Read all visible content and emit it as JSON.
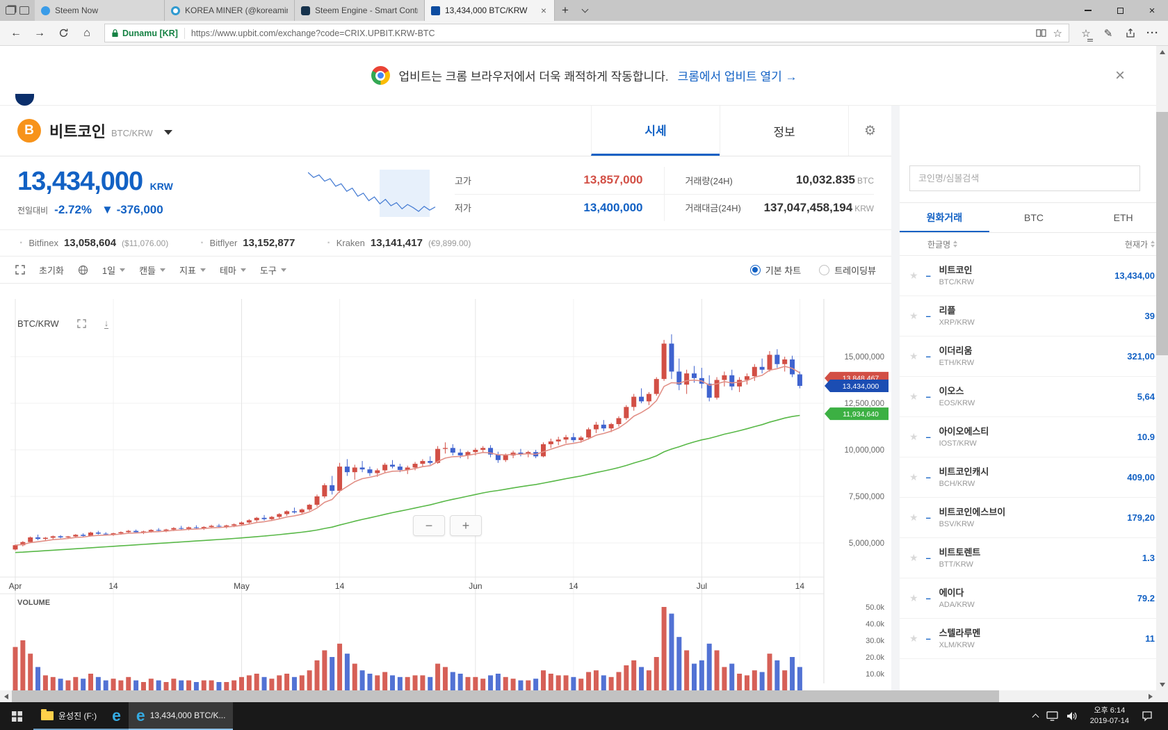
{
  "browser": {
    "tabs": [
      {
        "title": "Steem Now",
        "icon": "steem-now",
        "active": false
      },
      {
        "title": "KOREA MINER (@koreamin...",
        "icon": "korea-miner",
        "active": false
      },
      {
        "title": "Steem Engine - Smart Contr...",
        "icon": "steem-engine",
        "active": false
      },
      {
        "title": "13,434,000 BTC/KRW",
        "icon": "upbit",
        "active": true
      }
    ],
    "address": {
      "site_identity": "Dunamu [KR]",
      "url": "https://www.upbit.com/exchange?code=CRIX.UPBIT.KRW-BTC"
    }
  },
  "banner": {
    "message": "업비트는 크롬 브라우저에서 더욱 쾌적하게 작동합니다.",
    "link": "크롬에서 업비트 열기 →"
  },
  "coin_header": {
    "name": "비트코인",
    "pair": "BTC/KRW",
    "tab_price": "시세",
    "tab_info": "정보"
  },
  "price_panel": {
    "price": "13,434,000",
    "currency": "KRW",
    "change_label": "전일대비",
    "change_pct": "-2.72%",
    "change_amount": "▼ -376,000",
    "stats": [
      {
        "label": "고가",
        "value": "13,857,000",
        "unit": "",
        "tone": "up"
      },
      {
        "label": "거래량(24H)",
        "value": "10,032.835",
        "unit": "BTC",
        "tone": "plain"
      },
      {
        "label": "저가",
        "value": "13,400,000",
        "unit": "",
        "tone": "down"
      },
      {
        "label": "거래대금(24H)",
        "value": "137,047,458,194",
        "unit": "KRW",
        "tone": "plain"
      }
    ],
    "exchanges": [
      {
        "name": "Bitfinex",
        "value": "13,058,604",
        "sub": "($11,076.00)"
      },
      {
        "name": "Bitflyer",
        "value": "13,152,877",
        "sub": ""
      },
      {
        "name": "Kraken",
        "value": "13,141,417",
        "sub": "(€9,899.00)"
      }
    ],
    "sparkline": [
      13.98,
      13.9,
      13.94,
      13.84,
      13.88,
      13.76,
      13.8,
      13.68,
      13.73,
      13.6,
      13.65,
      13.53,
      13.59,
      13.48,
      13.55,
      13.45,
      13.5,
      13.4,
      13.47,
      13.42,
      13.36,
      13.44,
      13.38,
      13.43
    ]
  },
  "chart_toolbar": {
    "reset": "초기화",
    "menus": [
      "1일",
      "캔들",
      "지표",
      "테마",
      "도구"
    ],
    "chart_mode_basic": "기본 차트",
    "chart_mode_tradingview": "트레이딩뷰"
  },
  "chart_data": {
    "type": "candlestick",
    "title": "BTC/KRW",
    "unit_note": "OHLC in millions of KRW, volume in thousands",
    "y_ticks": [
      "15,000,000",
      "12,500,000",
      "10,000,000",
      "7,500,000",
      "5,000,000"
    ],
    "y_tick_values": [
      15,
      12.5,
      10,
      7.5,
      5
    ],
    "x_labels": [
      {
        "label": "Apr",
        "index": 0,
        "month": true
      },
      {
        "label": "14",
        "index": 13,
        "month": false
      },
      {
        "label": "May",
        "index": 30,
        "month": true
      },
      {
        "label": "14",
        "index": 43,
        "month": false
      },
      {
        "label": "Jun",
        "index": 61,
        "month": true
      },
      {
        "label": "14",
        "index": 74,
        "month": false
      },
      {
        "label": "Jul",
        "index": 91,
        "month": true
      },
      {
        "label": "14",
        "index": 104,
        "month": false
      }
    ],
    "price_tags": [
      {
        "label": "13,848,467",
        "value": 13.848467,
        "color": "#d24f45",
        "kind": "ma-short"
      },
      {
        "label": "13,434,000",
        "value": 13.434,
        "color": "#1b4db3",
        "kind": "current-price"
      },
      {
        "label": "11,934,640",
        "value": 11.93464,
        "color": "#3cb043",
        "kind": "ma-long"
      }
    ],
    "colors": {
      "up": "#d24f45",
      "down": "#3f63cf",
      "ma_short": "#e29087",
      "ma_long": "#58b847"
    },
    "volume": {
      "label": "VOLUME",
      "ticks": [
        "50.0k",
        "40.0k",
        "30.0k",
        "20.0k",
        "10.0k"
      ],
      "tick_values": [
        50,
        40,
        30,
        20,
        10
      ]
    },
    "candles": [
      [
        4.65,
        4.92,
        4.6,
        4.88,
        26
      ],
      [
        4.88,
        5.1,
        4.82,
        5.05,
        30
      ],
      [
        5.05,
        5.35,
        5.0,
        5.3,
        22
      ],
      [
        5.3,
        5.45,
        5.15,
        5.22,
        14
      ],
      [
        5.22,
        5.32,
        5.1,
        5.28,
        9
      ],
      [
        5.28,
        5.4,
        5.2,
        5.36,
        8
      ],
      [
        5.36,
        5.42,
        5.25,
        5.3,
        7
      ],
      [
        5.3,
        5.38,
        5.22,
        5.35,
        6
      ],
      [
        5.35,
        5.48,
        5.3,
        5.44,
        8
      ],
      [
        5.44,
        5.52,
        5.33,
        5.38,
        7
      ],
      [
        5.38,
        5.6,
        5.35,
        5.56,
        10
      ],
      [
        5.56,
        5.65,
        5.45,
        5.5,
        8
      ],
      [
        5.5,
        5.58,
        5.4,
        5.46,
        6
      ],
      [
        5.46,
        5.55,
        5.38,
        5.52,
        7
      ],
      [
        5.52,
        5.62,
        5.44,
        5.58,
        6
      ],
      [
        5.58,
        5.7,
        5.5,
        5.65,
        8
      ],
      [
        5.65,
        5.72,
        5.52,
        5.58,
        6
      ],
      [
        5.58,
        5.66,
        5.48,
        5.62,
        5
      ],
      [
        5.62,
        5.74,
        5.55,
        5.7,
        7
      ],
      [
        5.7,
        5.8,
        5.6,
        5.66,
        6
      ],
      [
        5.66,
        5.76,
        5.58,
        5.72,
        5
      ],
      [
        5.72,
        5.85,
        5.64,
        5.8,
        7
      ],
      [
        5.8,
        5.92,
        5.7,
        5.76,
        6
      ],
      [
        5.76,
        5.88,
        5.68,
        5.84,
        6
      ],
      [
        5.84,
        5.95,
        5.74,
        5.8,
        5
      ],
      [
        5.8,
        5.9,
        5.7,
        5.86,
        6
      ],
      [
        5.86,
        5.98,
        5.78,
        5.92,
        6
      ],
      [
        5.92,
        6.02,
        5.82,
        5.88,
        5
      ],
      [
        5.88,
        5.98,
        5.78,
        5.94,
        5
      ],
      [
        5.94,
        6.05,
        5.85,
        6.0,
        6
      ],
      [
        6.0,
        6.15,
        5.92,
        6.1,
        8
      ],
      [
        6.1,
        6.28,
        6.02,
        6.22,
        9
      ],
      [
        6.22,
        6.4,
        6.12,
        6.35,
        10
      ],
      [
        6.35,
        6.5,
        6.2,
        6.28,
        8
      ],
      [
        6.28,
        6.45,
        6.18,
        6.4,
        7
      ],
      [
        6.4,
        6.6,
        6.32,
        6.55,
        9
      ],
      [
        6.55,
        6.75,
        6.45,
        6.7,
        10
      ],
      [
        6.7,
        6.9,
        6.58,
        6.64,
        8
      ],
      [
        6.64,
        6.85,
        6.55,
        6.8,
        9
      ],
      [
        6.8,
        7.1,
        6.72,
        7.05,
        12
      ],
      [
        7.05,
        7.6,
        6.95,
        7.5,
        18
      ],
      [
        7.5,
        8.2,
        7.4,
        8.1,
        24
      ],
      [
        8.1,
        8.6,
        7.6,
        7.8,
        20
      ],
      [
        7.8,
        9.3,
        7.7,
        9.1,
        28
      ],
      [
        9.1,
        9.5,
        8.6,
        8.8,
        22
      ],
      [
        8.8,
        9.2,
        8.4,
        9.05,
        16
      ],
      [
        9.05,
        9.4,
        8.8,
        8.95,
        12
      ],
      [
        8.95,
        9.1,
        8.6,
        8.75,
        10
      ],
      [
        8.75,
        9.0,
        8.55,
        8.9,
        9
      ],
      [
        8.9,
        9.3,
        8.75,
        9.2,
        11
      ],
      [
        9.2,
        9.45,
        9.0,
        9.1,
        9
      ],
      [
        9.1,
        9.25,
        8.8,
        8.92,
        8
      ],
      [
        8.92,
        9.15,
        8.7,
        9.05,
        8
      ],
      [
        9.05,
        9.35,
        8.9,
        9.25,
        9
      ],
      [
        9.25,
        9.5,
        9.1,
        9.4,
        9
      ],
      [
        9.4,
        9.65,
        9.2,
        9.3,
        8
      ],
      [
        9.3,
        10.2,
        9.25,
        10.05,
        16
      ],
      [
        10.05,
        10.4,
        9.8,
        10.1,
        14
      ],
      [
        10.1,
        10.3,
        9.7,
        9.85,
        11
      ],
      [
        9.85,
        10.05,
        9.55,
        9.7,
        10
      ],
      [
        9.7,
        9.95,
        9.5,
        9.88,
        8
      ],
      [
        9.88,
        10.1,
        9.7,
        10.0,
        8
      ],
      [
        10.0,
        10.2,
        9.85,
        10.1,
        7
      ],
      [
        10.1,
        10.25,
        9.6,
        9.75,
        9
      ],
      [
        9.75,
        9.9,
        9.3,
        9.45,
        10
      ],
      [
        9.45,
        9.8,
        9.35,
        9.7,
        8
      ],
      [
        9.7,
        9.95,
        9.55,
        9.85,
        7
      ],
      [
        9.85,
        10.05,
        9.65,
        9.78,
        6
      ],
      [
        9.78,
        9.95,
        9.6,
        9.88,
        6
      ],
      [
        9.88,
        10.0,
        9.55,
        9.65,
        7
      ],
      [
        9.65,
        10.4,
        9.6,
        10.3,
        12
      ],
      [
        10.3,
        10.6,
        10.1,
        10.45,
        10
      ],
      [
        10.45,
        10.7,
        10.25,
        10.55,
        9
      ],
      [
        10.55,
        10.8,
        10.35,
        10.68,
        9
      ],
      [
        10.68,
        10.9,
        10.4,
        10.52,
        8
      ],
      [
        10.52,
        10.75,
        10.38,
        10.66,
        7
      ],
      [
        10.66,
        11.2,
        10.55,
        11.1,
        11
      ],
      [
        11.1,
        11.5,
        10.9,
        11.35,
        12
      ],
      [
        11.35,
        11.6,
        11.0,
        11.15,
        9
      ],
      [
        11.15,
        11.45,
        10.95,
        11.38,
        8
      ],
      [
        11.38,
        11.8,
        11.25,
        11.7,
        11
      ],
      [
        11.7,
        12.4,
        11.6,
        12.3,
        15
      ],
      [
        12.3,
        13.0,
        12.1,
        12.85,
        18
      ],
      [
        12.85,
        13.3,
        12.5,
        12.6,
        14
      ],
      [
        12.6,
        13.1,
        12.4,
        13.0,
        12
      ],
      [
        13.0,
        13.9,
        12.9,
        13.8,
        20
      ],
      [
        13.8,
        15.9,
        13.7,
        15.7,
        50
      ],
      [
        15.7,
        16.2,
        13.8,
        14.2,
        46
      ],
      [
        14.2,
        14.9,
        13.2,
        13.5,
        32
      ],
      [
        13.5,
        14.3,
        13.0,
        14.1,
        24
      ],
      [
        14.1,
        14.5,
        13.6,
        13.85,
        16
      ],
      [
        13.85,
        14.4,
        13.3,
        13.55,
        18
      ],
      [
        13.55,
        14.0,
        12.6,
        12.8,
        28
      ],
      [
        12.8,
        13.9,
        12.7,
        13.75,
        24
      ],
      [
        13.75,
        14.2,
        13.4,
        14.0,
        14
      ],
      [
        14.0,
        14.3,
        13.2,
        13.4,
        16
      ],
      [
        13.4,
        13.9,
        13.1,
        13.75,
        10
      ],
      [
        13.75,
        14.1,
        13.5,
        13.95,
        9
      ],
      [
        13.95,
        14.6,
        13.7,
        14.45,
        12
      ],
      [
        14.45,
        14.9,
        14.1,
        14.3,
        11
      ],
      [
        14.3,
        15.3,
        14.2,
        15.1,
        22
      ],
      [
        15.1,
        15.4,
        14.4,
        14.6,
        18
      ],
      [
        14.6,
        15.0,
        14.2,
        14.85,
        12
      ],
      [
        14.85,
        15.05,
        13.9,
        14.05,
        20
      ],
      [
        14.05,
        14.2,
        13.3,
        13.43,
        14
      ]
    ]
  },
  "sidebar": {
    "search_placeholder": "코인명/심볼검색",
    "tabs": [
      {
        "label": "원화거래",
        "active": true
      },
      {
        "label": "BTC",
        "active": false
      },
      {
        "label": "ETH",
        "active": false
      }
    ],
    "columns": {
      "name": "한글명",
      "price": "현재가"
    },
    "coins": [
      {
        "name": "비트코인",
        "pair": "BTC/KRW",
        "price": "13,434,00",
        "dir": "down"
      },
      {
        "name": "리플",
        "pair": "XRP/KRW",
        "price": "39",
        "dir": "down"
      },
      {
        "name": "이더리움",
        "pair": "ETH/KRW",
        "price": "321,00",
        "dir": "down"
      },
      {
        "name": "이오스",
        "pair": "EOS/KRW",
        "price": "5,64",
        "dir": "down"
      },
      {
        "name": "아이오에스티",
        "pair": "IOST/KRW",
        "price": "10.9",
        "dir": "down"
      },
      {
        "name": "비트코인캐시",
        "pair": "BCH/KRW",
        "price": "409,00",
        "dir": "down"
      },
      {
        "name": "비트코인에스브이",
        "pair": "BSV/KRW",
        "price": "179,20",
        "dir": "down"
      },
      {
        "name": "비트토렌트",
        "pair": "BTT/KRW",
        "price": "1.3",
        "dir": "down"
      },
      {
        "name": "에이다",
        "pair": "ADA/KRW",
        "price": "79.2",
        "dir": "down"
      },
      {
        "name": "스텔라루멘",
        "pair": "XLM/KRW",
        "price": "11",
        "dir": "down"
      }
    ]
  },
  "taskbar": {
    "items": [
      {
        "label": "윤성진 (F:)",
        "icon": "explorer",
        "active": false
      },
      {
        "label": "",
        "icon": "edge",
        "active": false
      },
      {
        "label": "13,434,000 BTC/K...",
        "icon": "edge",
        "active": true
      }
    ],
    "clock": {
      "time": "오후 6:14",
      "date": "2019-07-14"
    }
  }
}
